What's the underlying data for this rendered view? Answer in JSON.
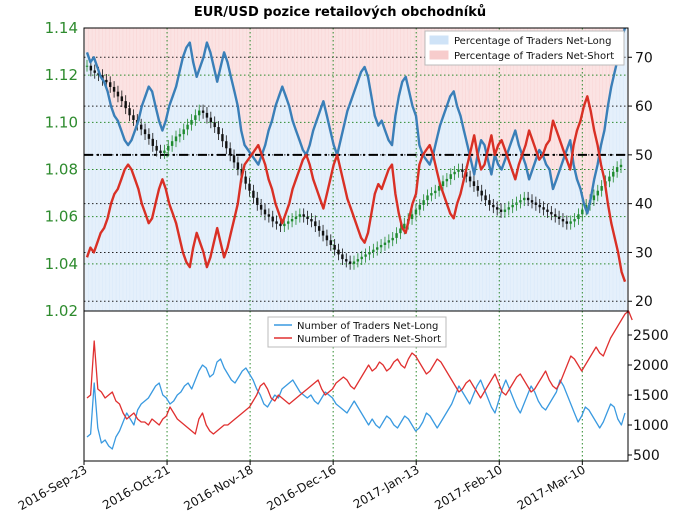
{
  "title": "EUR/USD pozice retailových obchodníků",
  "chart_data": [
    {
      "type": "line",
      "panel": "top",
      "x_ticks": [
        "2016-Sep-23",
        "2016-Oct-21",
        "2016-Nov-18",
        "2016-Dec-16",
        "2017-Jan-13",
        "2017-Feb-10",
        "2017-Mar-10"
      ],
      "price_axis": {
        "ticks": [
          "1.02",
          "1.04",
          "1.06",
          "1.08",
          "1.10",
          "1.12",
          "1.14"
        ],
        "ylim": [
          1.02,
          1.14
        ],
        "color": "#2e8b2e"
      },
      "percent_axis": {
        "ticks": [
          "20",
          "30",
          "40",
          "50",
          "60",
          "70"
        ],
        "ylim": [
          18,
          76
        ]
      },
      "reference_line": 50,
      "series": [
        {
          "name": "Percentage of Traders Net-Long",
          "color": "#3a7fb8",
          "fill": "#cfe3f7",
          "values": [
            71,
            69,
            70,
            68,
            66,
            65,
            63,
            60,
            58,
            57,
            55,
            53,
            52,
            53,
            55,
            57,
            60,
            62,
            64,
            63,
            60,
            57,
            55,
            57,
            60,
            62,
            64,
            67,
            70,
            72,
            73,
            69,
            66,
            68,
            70,
            73,
            71,
            68,
            65,
            68,
            71,
            69,
            66,
            63,
            60,
            55,
            52,
            51,
            50,
            49,
            48,
            50,
            52,
            55,
            57,
            60,
            62,
            64,
            62,
            60,
            57,
            55,
            53,
            51,
            50,
            52,
            55,
            57,
            59,
            61,
            58,
            55,
            52,
            50,
            53,
            56,
            59,
            61,
            63,
            65,
            67,
            68,
            66,
            62,
            58,
            56,
            57,
            55,
            53,
            52,
            58,
            62,
            65,
            66,
            63,
            60,
            58,
            52,
            50,
            49,
            48,
            50,
            53,
            56,
            58,
            60,
            62,
            63,
            60,
            58,
            55,
            52,
            49,
            46,
            50,
            53,
            52,
            49,
            46,
            50,
            48,
            47,
            49,
            51,
            53,
            55,
            52,
            50,
            48,
            45,
            47,
            49,
            51,
            50,
            48,
            47,
            43,
            45,
            47,
            49,
            51,
            53,
            48,
            45,
            43,
            40,
            38,
            41,
            45,
            48,
            52,
            55,
            60,
            64,
            67,
            70,
            74,
            76
          ]
        },
        {
          "name": "Percentage of Traders Net-Short",
          "color": "#d93025",
          "fill": "#f7cccc",
          "values": [
            29,
            31,
            30,
            32,
            34,
            35,
            37,
            40,
            42,
            43,
            45,
            47,
            48,
            47,
            45,
            43,
            40,
            38,
            36,
            37,
            40,
            43,
            45,
            43,
            40,
            38,
            36,
            33,
            30,
            28,
            27,
            31,
            34,
            32,
            30,
            27,
            29,
            32,
            35,
            32,
            29,
            31,
            34,
            37,
            40,
            45,
            48,
            49,
            50,
            51,
            52,
            50,
            48,
            45,
            43,
            40,
            38,
            36,
            38,
            40,
            43,
            45,
            47,
            49,
            50,
            48,
            45,
            43,
            41,
            39,
            42,
            45,
            48,
            50,
            47,
            44,
            41,
            39,
            37,
            35,
            33,
            32,
            34,
            38,
            42,
            44,
            43,
            45,
            47,
            48,
            42,
            38,
            35,
            34,
            37,
            40,
            42,
            48,
            50,
            51,
            52,
            50,
            47,
            44,
            42,
            40,
            38,
            37,
            40,
            42,
            45,
            48,
            51,
            54,
            50,
            47,
            48,
            51,
            54,
            50,
            52,
            53,
            51,
            49,
            47,
            45,
            48,
            50,
            52,
            55,
            53,
            51,
            49,
            50,
            52,
            53,
            57,
            55,
            53,
            51,
            49,
            47,
            52,
            55,
            57,
            60,
            62,
            59,
            55,
            52,
            48,
            45,
            40,
            36,
            33,
            30,
            26,
            24
          ]
        }
      ],
      "price_series": {
        "name": "EUR/USD",
        "values": [
          1.124,
          1.122,
          1.121,
          1.12,
          1.118,
          1.117,
          1.115,
          1.113,
          1.111,
          1.109,
          1.106,
          1.103,
          1.101,
          1.099,
          1.097,
          1.095,
          1.093,
          1.09,
          1.088,
          1.087,
          1.088,
          1.09,
          1.092,
          1.094,
          1.095,
          1.097,
          1.099,
          1.101,
          1.103,
          1.105,
          1.104,
          1.102,
          1.1,
          1.098,
          1.095,
          1.092,
          1.089,
          1.086,
          1.083,
          1.08,
          1.077,
          1.074,
          1.071,
          1.068,
          1.065,
          1.063,
          1.061,
          1.06,
          1.058,
          1.057,
          1.056,
          1.057,
          1.058,
          1.059,
          1.06,
          1.061,
          1.06,
          1.059,
          1.058,
          1.056,
          1.054,
          1.052,
          1.05,
          1.048,
          1.046,
          1.044,
          1.042,
          1.041,
          1.04,
          1.041,
          1.042,
          1.043,
          1.044,
          1.045,
          1.046,
          1.047,
          1.048,
          1.049,
          1.05,
          1.051,
          1.053,
          1.055,
          1.057,
          1.059,
          1.061,
          1.063,
          1.065,
          1.067,
          1.069,
          1.07,
          1.071,
          1.073,
          1.075,
          1.076,
          1.078,
          1.079,
          1.08,
          1.079,
          1.077,
          1.075,
          1.073,
          1.071,
          1.069,
          1.067,
          1.065,
          1.064,
          1.063,
          1.062,
          1.063,
          1.064,
          1.065,
          1.066,
          1.067,
          1.068,
          1.067,
          1.066,
          1.065,
          1.064,
          1.063,
          1.062,
          1.061,
          1.06,
          1.059,
          1.058,
          1.057,
          1.058,
          1.059,
          1.061,
          1.063,
          1.065,
          1.067,
          1.069,
          1.071,
          1.073,
          1.075,
          1.077,
          1.079,
          1.081,
          1.082
        ]
      }
    },
    {
      "type": "line",
      "panel": "bottom",
      "y_ticks": [
        "500",
        "1000",
        "1500",
        "2000",
        "2500"
      ],
      "ylim": [
        400,
        2900
      ],
      "series": [
        {
          "name": "Number of Traders Net-Long",
          "color": "#3a9ae0",
          "values": [
            800,
            850,
            1700,
            950,
            700,
            750,
            650,
            600,
            800,
            900,
            1050,
            1200,
            1100,
            1000,
            1250,
            1350,
            1400,
            1450,
            1550,
            1650,
            1700,
            1500,
            1450,
            1350,
            1400,
            1500,
            1550,
            1650,
            1700,
            1600,
            1750,
            1900,
            2000,
            1950,
            1800,
            1850,
            2050,
            2100,
            1950,
            1850,
            1750,
            1700,
            1800,
            1900,
            1950,
            1850,
            1750,
            1600,
            1500,
            1350,
            1300,
            1400,
            1500,
            1450,
            1600,
            1650,
            1700,
            1750,
            1650,
            1550,
            1500,
            1450,
            1500,
            1400,
            1350,
            1450,
            1550,
            1500,
            1450,
            1350,
            1300,
            1250,
            1200,
            1300,
            1400,
            1300,
            1200,
            1100,
            1000,
            1100,
            1000,
            950,
            1050,
            1150,
            1100,
            1000,
            950,
            1050,
            1150,
            1100,
            1000,
            900,
            950,
            1050,
            1200,
            1150,
            1050,
            950,
            1050,
            1150,
            1250,
            1350,
            1500,
            1650,
            1550,
            1450,
            1350,
            1500,
            1650,
            1750,
            1600,
            1450,
            1300,
            1200,
            1400,
            1600,
            1750,
            1600,
            1450,
            1300,
            1200,
            1350,
            1500,
            1650,
            1550,
            1400,
            1300,
            1250,
            1350,
            1450,
            1550,
            1750,
            1650,
            1500,
            1350,
            1200,
            1050,
            1150,
            1300,
            1250,
            1150,
            1050,
            950,
            1050,
            1200,
            1350,
            1300,
            1100,
            1000,
            1200
          ]
        },
        {
          "name": "Number of Traders Net-Short",
          "color": "#e03030",
          "values": [
            1450,
            1500,
            2400,
            1600,
            1550,
            1450,
            1500,
            1550,
            1400,
            1350,
            1200,
            1100,
            1150,
            1200,
            1100,
            1050,
            1050,
            1000,
            1100,
            1050,
            1000,
            1100,
            1150,
            1300,
            1200,
            1100,
            1050,
            1000,
            950,
            900,
            850,
            1100,
            1200,
            1000,
            900,
            850,
            900,
            950,
            1000,
            1000,
            1050,
            1100,
            1150,
            1200,
            1250,
            1300,
            1400,
            1500,
            1650,
            1700,
            1600,
            1450,
            1400,
            1500,
            1450,
            1400,
            1350,
            1400,
            1450,
            1500,
            1550,
            1600,
            1650,
            1700,
            1750,
            1600,
            1500,
            1550,
            1600,
            1700,
            1750,
            1800,
            1750,
            1650,
            1600,
            1700,
            1800,
            1900,
            2000,
            1900,
            1950,
            2050,
            2000,
            1900,
            1950,
            2050,
            2100,
            2000,
            1950,
            2100,
            2200,
            2150,
            2050,
            1950,
            1850,
            1900,
            2000,
            2100,
            2050,
            1950,
            1850,
            1750,
            1650,
            1550,
            1600,
            1700,
            1750,
            1650,
            1550,
            1450,
            1550,
            1650,
            1750,
            1850,
            1700,
            1550,
            1500,
            1600,
            1700,
            1800,
            1850,
            1750,
            1650,
            1550,
            1600,
            1700,
            1800,
            1900,
            1750,
            1650,
            1600,
            1700,
            1850,
            2000,
            2150,
            2100,
            2000,
            1900,
            2000,
            2100,
            2200,
            2300,
            2200,
            2150,
            2300,
            2450,
            2550,
            2650,
            2750,
            2850,
            2900,
            2750
          ]
        }
      ]
    }
  ]
}
